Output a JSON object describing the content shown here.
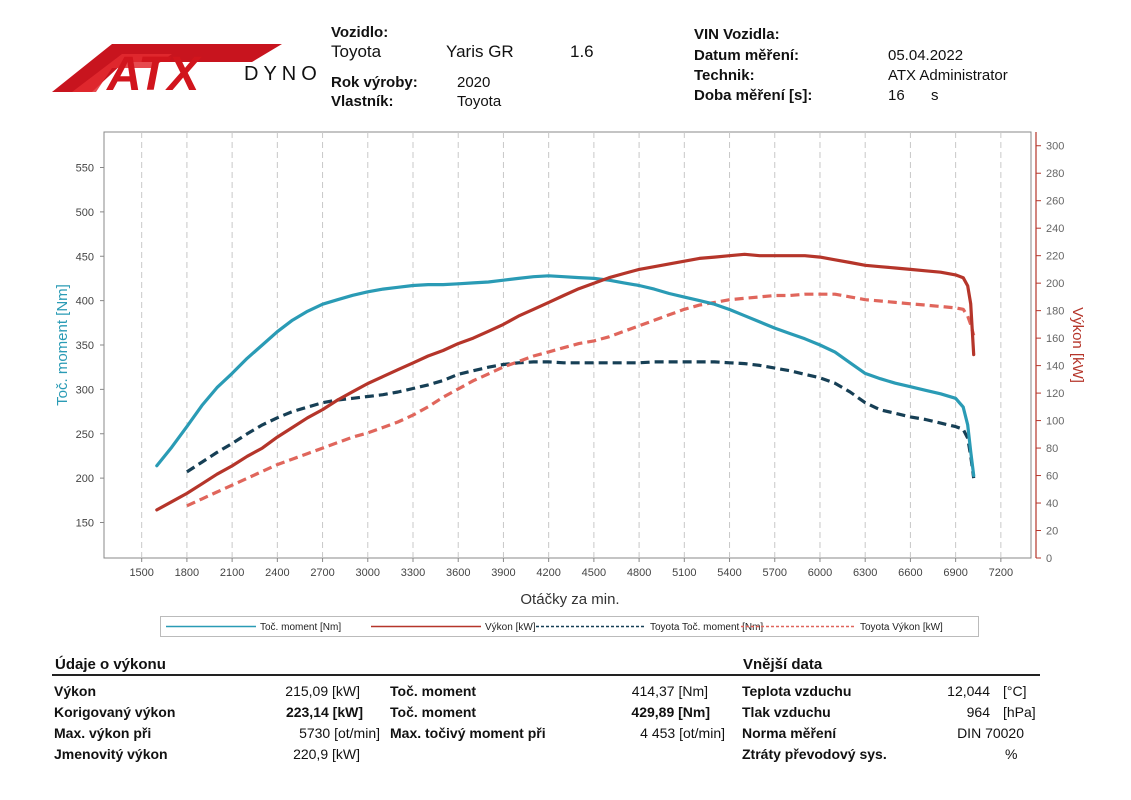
{
  "logo": {
    "brand": "ATX",
    "sub": "DYNO"
  },
  "header": {
    "vehicle_label": "Vozidlo:",
    "make": "Toyota",
    "model": "Yaris GR",
    "engine": "1.6",
    "year_label": "Rok výroby:",
    "year": "2020",
    "owner_label": "Vlastník:",
    "owner": "Toyota",
    "vin_label": "VIN Vozidla:",
    "date_label": "Datum měření:",
    "date": "05.04.2022",
    "tech_label": "Technik:",
    "tech": "ATX Administrator",
    "duration_label": "Doba měření [s]:",
    "duration": "16",
    "duration_unit": "s"
  },
  "chart_data": {
    "type": "line",
    "xlabel": "Otáčky za min.",
    "ylabel": "Toč. moment [Nm]",
    "y2label": "Výkon [kW]",
    "xlim": [
      1250,
      7400
    ],
    "ylim": [
      110,
      590
    ],
    "y2lim": [
      0,
      310
    ],
    "xticks": [
      1500,
      1800,
      2100,
      2400,
      2700,
      3000,
      3300,
      3600,
      3900,
      4200,
      4500,
      4800,
      5100,
      5400,
      5700,
      6000,
      6300,
      6600,
      6900,
      7200
    ],
    "yticks": [
      150,
      200,
      250,
      300,
      350,
      400,
      450,
      500,
      550
    ],
    "y2ticks": [
      0,
      20,
      40,
      60,
      80,
      100,
      120,
      140,
      160,
      180,
      200,
      220,
      240,
      260,
      280,
      300
    ],
    "grid": true,
    "legend": "bottom",
    "colors": {
      "torque": "#2a9bb5",
      "power": "#b5352a",
      "ref_torque": "#163f55",
      "ref_power": "#e0665c"
    },
    "series": [
      {
        "name": "Toč. moment [Nm]",
        "axis": "left",
        "style": "solid",
        "color_key": "torque",
        "points": [
          [
            1600,
            214
          ],
          [
            1700,
            235
          ],
          [
            1800,
            258
          ],
          [
            1900,
            282
          ],
          [
            2000,
            302
          ],
          [
            2100,
            318
          ],
          [
            2200,
            335
          ],
          [
            2300,
            350
          ],
          [
            2400,
            365
          ],
          [
            2500,
            378
          ],
          [
            2600,
            388
          ],
          [
            2700,
            396
          ],
          [
            2800,
            401
          ],
          [
            2900,
            406
          ],
          [
            3000,
            410
          ],
          [
            3100,
            413
          ],
          [
            3200,
            415
          ],
          [
            3300,
            417
          ],
          [
            3400,
            418
          ],
          [
            3500,
            418
          ],
          [
            3600,
            419
          ],
          [
            3700,
            420
          ],
          [
            3800,
            421
          ],
          [
            3900,
            423
          ],
          [
            4000,
            425
          ],
          [
            4100,
            427
          ],
          [
            4200,
            428
          ],
          [
            4300,
            427
          ],
          [
            4400,
            426
          ],
          [
            4500,
            425
          ],
          [
            4600,
            423
          ],
          [
            4700,
            420
          ],
          [
            4800,
            417
          ],
          [
            4900,
            413
          ],
          [
            5000,
            408
          ],
          [
            5100,
            404
          ],
          [
            5200,
            400
          ],
          [
            5300,
            396
          ],
          [
            5400,
            390
          ],
          [
            5500,
            383
          ],
          [
            5600,
            376
          ],
          [
            5700,
            369
          ],
          [
            5800,
            363
          ],
          [
            5900,
            357
          ],
          [
            6000,
            350
          ],
          [
            6100,
            342
          ],
          [
            6200,
            330
          ],
          [
            6300,
            318
          ],
          [
            6400,
            312
          ],
          [
            6500,
            307
          ],
          [
            6600,
            303
          ],
          [
            6700,
            299
          ],
          [
            6800,
            295
          ],
          [
            6900,
            290
          ],
          [
            6950,
            280
          ],
          [
            6980,
            260
          ],
          [
            7000,
            230
          ],
          [
            7020,
            203
          ]
        ]
      },
      {
        "name": "Výkon [kW]",
        "axis": "right",
        "style": "solid",
        "color_key": "power",
        "points": [
          [
            1600,
            35
          ],
          [
            1700,
            41
          ],
          [
            1800,
            47
          ],
          [
            1900,
            54
          ],
          [
            2000,
            61
          ],
          [
            2100,
            67
          ],
          [
            2200,
            74
          ],
          [
            2300,
            80
          ],
          [
            2400,
            88
          ],
          [
            2500,
            95
          ],
          [
            2600,
            102
          ],
          [
            2700,
            108
          ],
          [
            2800,
            115
          ],
          [
            2900,
            121
          ],
          [
            3000,
            127
          ],
          [
            3100,
            132
          ],
          [
            3200,
            137
          ],
          [
            3300,
            142
          ],
          [
            3400,
            147
          ],
          [
            3500,
            151
          ],
          [
            3600,
            156
          ],
          [
            3700,
            160
          ],
          [
            3800,
            165
          ],
          [
            3900,
            170
          ],
          [
            4000,
            176
          ],
          [
            4100,
            181
          ],
          [
            4200,
            186
          ],
          [
            4300,
            191
          ],
          [
            4400,
            196
          ],
          [
            4500,
            200
          ],
          [
            4600,
            204
          ],
          [
            4700,
            207
          ],
          [
            4800,
            210
          ],
          [
            4900,
            212
          ],
          [
            5000,
            214
          ],
          [
            5100,
            216
          ],
          [
            5200,
            218
          ],
          [
            5300,
            219
          ],
          [
            5400,
            220
          ],
          [
            5500,
            221
          ],
          [
            5600,
            220
          ],
          [
            5700,
            220
          ],
          [
            5800,
            220
          ],
          [
            5900,
            220
          ],
          [
            6000,
            219
          ],
          [
            6100,
            217
          ],
          [
            6200,
            215
          ],
          [
            6300,
            213
          ],
          [
            6400,
            212
          ],
          [
            6500,
            211
          ],
          [
            6600,
            210
          ],
          [
            6700,
            209
          ],
          [
            6800,
            208
          ],
          [
            6900,
            206
          ],
          [
            6950,
            204
          ],
          [
            6980,
            198
          ],
          [
            7000,
            185
          ],
          [
            7020,
            148
          ]
        ]
      },
      {
        "name": "Toyota Toč. moment [Nm]",
        "axis": "left",
        "style": "dashed",
        "color_key": "ref_torque",
        "points": [
          [
            1800,
            207
          ],
          [
            1900,
            218
          ],
          [
            2000,
            229
          ],
          [
            2100,
            239
          ],
          [
            2200,
            250
          ],
          [
            2300,
            260
          ],
          [
            2400,
            268
          ],
          [
            2500,
            275
          ],
          [
            2600,
            280
          ],
          [
            2700,
            285
          ],
          [
            2800,
            288
          ],
          [
            2900,
            290
          ],
          [
            3000,
            292
          ],
          [
            3100,
            294
          ],
          [
            3200,
            297
          ],
          [
            3300,
            301
          ],
          [
            3400,
            305
          ],
          [
            3500,
            310
          ],
          [
            3600,
            317
          ],
          [
            3700,
            321
          ],
          [
            3800,
            325
          ],
          [
            3900,
            328
          ],
          [
            4000,
            330
          ],
          [
            4100,
            331
          ],
          [
            4200,
            331
          ],
          [
            4300,
            330
          ],
          [
            4400,
            330
          ],
          [
            4500,
            330
          ],
          [
            4600,
            330
          ],
          [
            4700,
            330
          ],
          [
            4800,
            330
          ],
          [
            4900,
            331
          ],
          [
            5000,
            331
          ],
          [
            5100,
            331
          ],
          [
            5200,
            331
          ],
          [
            5300,
            331
          ],
          [
            5400,
            330
          ],
          [
            5500,
            329
          ],
          [
            5600,
            327
          ],
          [
            5700,
            324
          ],
          [
            5800,
            321
          ],
          [
            5900,
            317
          ],
          [
            6000,
            313
          ],
          [
            6100,
            307
          ],
          [
            6200,
            297
          ],
          [
            6300,
            285
          ],
          [
            6400,
            277
          ],
          [
            6500,
            273
          ],
          [
            6600,
            269
          ],
          [
            6700,
            266
          ],
          [
            6800,
            262
          ],
          [
            6900,
            258
          ],
          [
            6950,
            255
          ],
          [
            6980,
            245
          ],
          [
            7000,
            225
          ],
          [
            7020,
            200
          ]
        ]
      },
      {
        "name": "Toyota Výkon [kW]",
        "axis": "right",
        "style": "dashed",
        "color_key": "ref_power",
        "points": [
          [
            1800,
            38
          ],
          [
            1900,
            43
          ],
          [
            2000,
            48
          ],
          [
            2100,
            53
          ],
          [
            2200,
            58
          ],
          [
            2300,
            63
          ],
          [
            2400,
            68
          ],
          [
            2500,
            72
          ],
          [
            2600,
            76
          ],
          [
            2700,
            80
          ],
          [
            2800,
            84
          ],
          [
            2900,
            88
          ],
          [
            3000,
            91
          ],
          [
            3100,
            95
          ],
          [
            3200,
            99
          ],
          [
            3300,
            104
          ],
          [
            3400,
            110
          ],
          [
            3500,
            117
          ],
          [
            3600,
            123
          ],
          [
            3700,
            129
          ],
          [
            3800,
            134
          ],
          [
            3900,
            139
          ],
          [
            4000,
            143
          ],
          [
            4100,
            147
          ],
          [
            4200,
            150
          ],
          [
            4300,
            153
          ],
          [
            4400,
            156
          ],
          [
            4500,
            158
          ],
          [
            4600,
            161
          ],
          [
            4700,
            165
          ],
          [
            4800,
            169
          ],
          [
            4900,
            173
          ],
          [
            5000,
            177
          ],
          [
            5100,
            181
          ],
          [
            5200,
            184
          ],
          [
            5300,
            186
          ],
          [
            5400,
            188
          ],
          [
            5500,
            189
          ],
          [
            5600,
            190
          ],
          [
            5700,
            191
          ],
          [
            5800,
            191
          ],
          [
            5900,
            192
          ],
          [
            6000,
            192
          ],
          [
            6100,
            192
          ],
          [
            6200,
            190
          ],
          [
            6300,
            188
          ],
          [
            6400,
            187
          ],
          [
            6500,
            186
          ],
          [
            6600,
            185
          ],
          [
            6700,
            184
          ],
          [
            6800,
            183
          ],
          [
            6900,
            182
          ],
          [
            6950,
            181
          ],
          [
            6980,
            176
          ],
          [
            7000,
            170
          ],
          [
            7020,
            162
          ]
        ]
      }
    ]
  },
  "performance": {
    "title": "Údaje o výkonu",
    "power_label": "Výkon",
    "power_value": "215,09 [kW]",
    "corrected_label": "Korigovaný výkon",
    "corrected_value": "223,14 [kW]",
    "max_power_rpm_label": "Max. výkon při",
    "max_power_rpm_value": "5730 [ot/min]",
    "rated_label": "Jmenovitý výkon",
    "rated_value": "220,9 [kW]",
    "torque_label": "Toč. moment",
    "torque_value": "414,37 [Nm]",
    "torque2_label": "Toč. moment",
    "torque2_value": "429,89 [Nm]",
    "max_torque_rpm_label": "Max. točivý moment při",
    "max_torque_rpm_value": "4 453 [ot/min]"
  },
  "external": {
    "title": "Vnější data",
    "temp_label": "Teplota vzduchu",
    "temp_value": "12,044",
    "temp_unit": "[°C]",
    "pressure_label": "Tlak vzduchu",
    "pressure_value": "964",
    "pressure_unit": "[hPa]",
    "norm_label": "Norma měření",
    "norm_value": "DIN 70020",
    "loss_label": "Ztráty převodový sys.",
    "loss_unit": "%"
  }
}
